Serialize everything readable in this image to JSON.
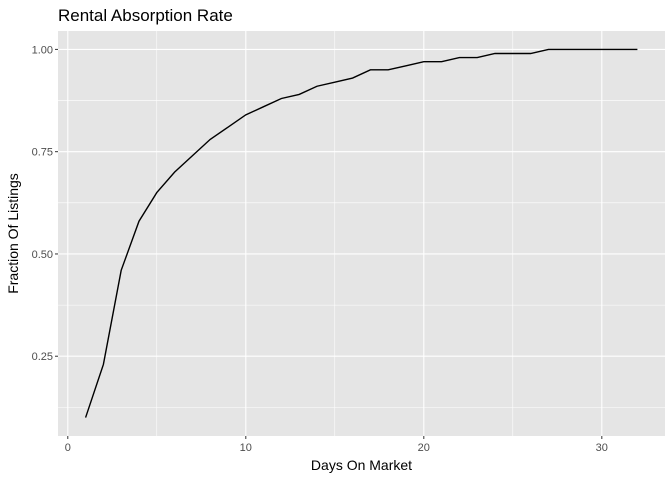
{
  "chart_data": {
    "type": "line",
    "title": "Rental Absorption Rate",
    "xlabel": "Days On Market",
    "ylabel": "Fraction Of Listings",
    "xlim": [
      -0.55,
      33.55
    ],
    "ylim": [
      0.055,
      1.045
    ],
    "x_ticks": [
      0,
      10,
      20,
      30
    ],
    "x_tick_labels": [
      "0",
      "10",
      "20",
      "30"
    ],
    "y_ticks": [
      0.25,
      0.5,
      0.75,
      1.0
    ],
    "y_tick_labels": [
      "0.25",
      "0.50",
      "0.75",
      "1.00"
    ],
    "grid": true,
    "colors": {
      "panel": "#e5e5e5",
      "grid": "#ffffff",
      "line": "#000000",
      "tick": "#4d4d4d"
    },
    "series": [
      {
        "x": [
          1,
          2,
          3,
          4,
          5,
          6,
          7,
          8,
          9,
          10,
          11,
          12,
          13,
          14,
          15,
          16,
          17,
          18,
          19,
          20,
          21,
          22,
          23,
          24,
          25,
          26,
          27,
          28,
          29,
          30,
          31,
          32
        ],
        "values": [
          0.1,
          0.23,
          0.46,
          0.58,
          0.65,
          0.7,
          0.74,
          0.78,
          0.81,
          0.84,
          0.86,
          0.88,
          0.89,
          0.91,
          0.92,
          0.93,
          0.95,
          0.95,
          0.96,
          0.97,
          0.97,
          0.98,
          0.98,
          0.99,
          0.99,
          0.99,
          1.0,
          1.0,
          1.0,
          1.0,
          1.0,
          1.0
        ]
      }
    ]
  }
}
